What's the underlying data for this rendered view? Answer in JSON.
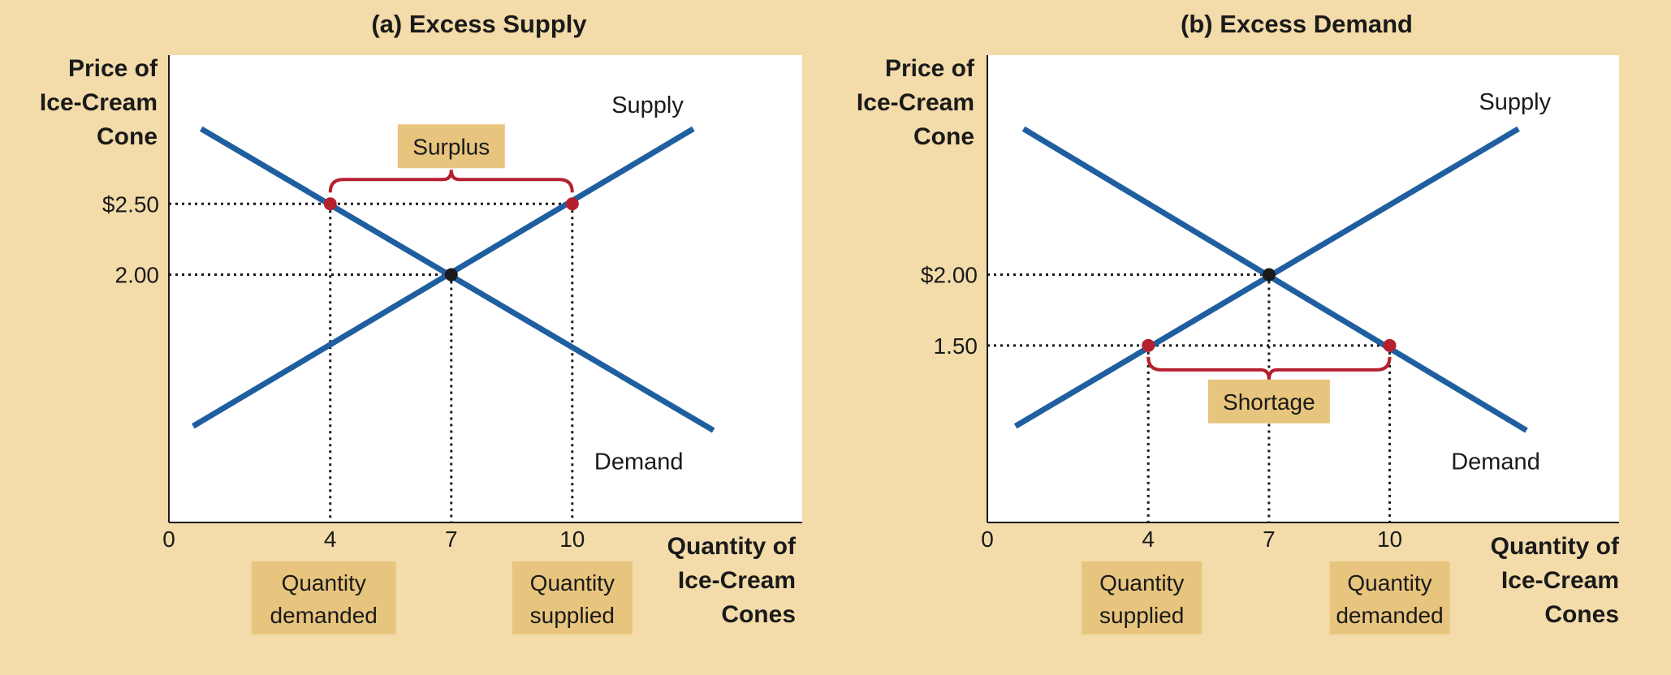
{
  "colors": {
    "background": "#f3dcaa",
    "plot_background": "#ffffff",
    "curve": "#1f5fa0",
    "point_red": "#b5202e",
    "point_black": "#1a1a1a",
    "brace": "#b5202e",
    "label_box": "#e8c57e"
  },
  "chart_data": [
    {
      "type": "line",
      "title": "(a) Excess Supply",
      "ylabel_lines": [
        "Price of",
        "Ice-Cream",
        "Cone"
      ],
      "xlabel_lines": [
        "Quantity of",
        "Ice-Cream",
        "Cones"
      ],
      "x_ticks": [
        {
          "value": 0,
          "label": "0"
        },
        {
          "value": 4,
          "label": "4"
        },
        {
          "value": 7,
          "label": "7"
        },
        {
          "value": 10,
          "label": "10"
        }
      ],
      "y_ticks": [
        {
          "value": 2.5,
          "label": "$2.50"
        },
        {
          "value": 2.0,
          "label": "2.00"
        }
      ],
      "series": [
        {
          "name": "Supply",
          "points": [
            [
              0.6,
              0.93
            ],
            [
              13.0,
              3.03
            ]
          ]
        },
        {
          "name": "Demand",
          "points": [
            [
              0.8,
              3.03
            ],
            [
              13.5,
              0.9
            ]
          ]
        }
      ],
      "equilibrium": {
        "x": 7,
        "y": 2.0
      },
      "highlight_points": [
        {
          "x": 4,
          "y": 2.5
        },
        {
          "x": 10,
          "y": 2.5
        }
      ],
      "gap_label": "Surplus",
      "gap_position": "above",
      "qty_boxes": [
        {
          "x": 4,
          "lines": [
            "Quantity",
            "demanded"
          ]
        },
        {
          "x": 10,
          "lines": [
            "Quantity",
            "supplied"
          ]
        }
      ]
    },
    {
      "type": "line",
      "title": "(b) Excess Demand",
      "ylabel_lines": [
        "Price of",
        "Ice-Cream",
        "Cone"
      ],
      "xlabel_lines": [
        "Quantity of",
        "Ice-Cream",
        "Cones"
      ],
      "x_ticks": [
        {
          "value": 0,
          "label": "0"
        },
        {
          "value": 4,
          "label": "4"
        },
        {
          "value": 7,
          "label": "7"
        },
        {
          "value": 10,
          "label": "10"
        }
      ],
      "y_ticks": [
        {
          "value": 2.0,
          "label": "$2.00"
        },
        {
          "value": 1.5,
          "label": "1.50"
        }
      ],
      "series": [
        {
          "name": "Supply",
          "points": [
            [
              0.7,
              0.93
            ],
            [
              13.2,
              3.03
            ]
          ]
        },
        {
          "name": "Demand",
          "points": [
            [
              0.9,
              3.03
            ],
            [
              13.4,
              0.9
            ]
          ]
        }
      ],
      "equilibrium": {
        "x": 7,
        "y": 2.0
      },
      "highlight_points": [
        {
          "x": 4,
          "y": 1.5
        },
        {
          "x": 10,
          "y": 1.5
        }
      ],
      "gap_label": "Shortage",
      "gap_position": "below",
      "qty_boxes": [
        {
          "x": 4,
          "lines": [
            "Quantity",
            "supplied"
          ]
        },
        {
          "x": 10,
          "lines": [
            "Quantity",
            "demanded"
          ]
        }
      ]
    }
  ]
}
